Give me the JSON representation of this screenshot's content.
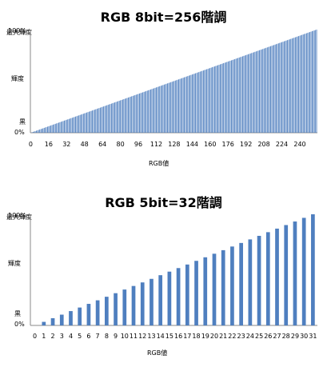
{
  "chart_data": [
    {
      "type": "bar",
      "title": "RGB 8bit=256階調",
      "xlabel": "RGB値",
      "y_top_label": "最大輝度",
      "y_mid_label": "輝度",
      "y_bottom_label": "黒",
      "y_tick_top": "100%",
      "y_tick_bottom": "0%",
      "ylim": [
        0,
        100
      ],
      "x_tick_labels": [
        "0",
        "16",
        "32",
        "48",
        "64",
        "80",
        "96",
        "112",
        "128",
        "144",
        "160",
        "176",
        "192",
        "208",
        "224",
        "240"
      ],
      "x_tick_values": [
        0,
        16,
        32,
        48,
        64,
        80,
        96,
        112,
        128,
        144,
        160,
        176,
        192,
        208,
        224,
        240
      ],
      "n_levels": 256,
      "values_description_linear": true,
      "bar_color": "#4f7fbf",
      "grid": false
    },
    {
      "type": "bar",
      "title": "RGB 5bit=32階調",
      "xlabel": "RGB値",
      "y_top_label": "最大輝度",
      "y_mid_label": "輝度",
      "y_bottom_label": "黒",
      "y_tick_top": "100%",
      "y_tick_bottom": "0%",
      "ylim": [
        0,
        100
      ],
      "categories": [
        "0",
        "1",
        "2",
        "3",
        "4",
        "5",
        "6",
        "7",
        "8",
        "9",
        "10",
        "11",
        "12",
        "13",
        "14",
        "15",
        "16",
        "17",
        "18",
        "19",
        "20",
        "21",
        "22",
        "23",
        "24",
        "25",
        "26",
        "27",
        "28",
        "29",
        "30",
        "31"
      ],
      "values": [
        0,
        3.2,
        6.5,
        9.7,
        12.9,
        16.1,
        19.4,
        22.6,
        25.8,
        29.0,
        32.3,
        35.5,
        38.7,
        41.9,
        45.2,
        48.4,
        51.6,
        54.8,
        58.1,
        61.3,
        64.5,
        67.7,
        71.0,
        74.2,
        77.4,
        80.6,
        83.9,
        87.1,
        90.3,
        93.5,
        96.8,
        100
      ],
      "bar_color": "#4f7fbf",
      "grid": false
    }
  ]
}
